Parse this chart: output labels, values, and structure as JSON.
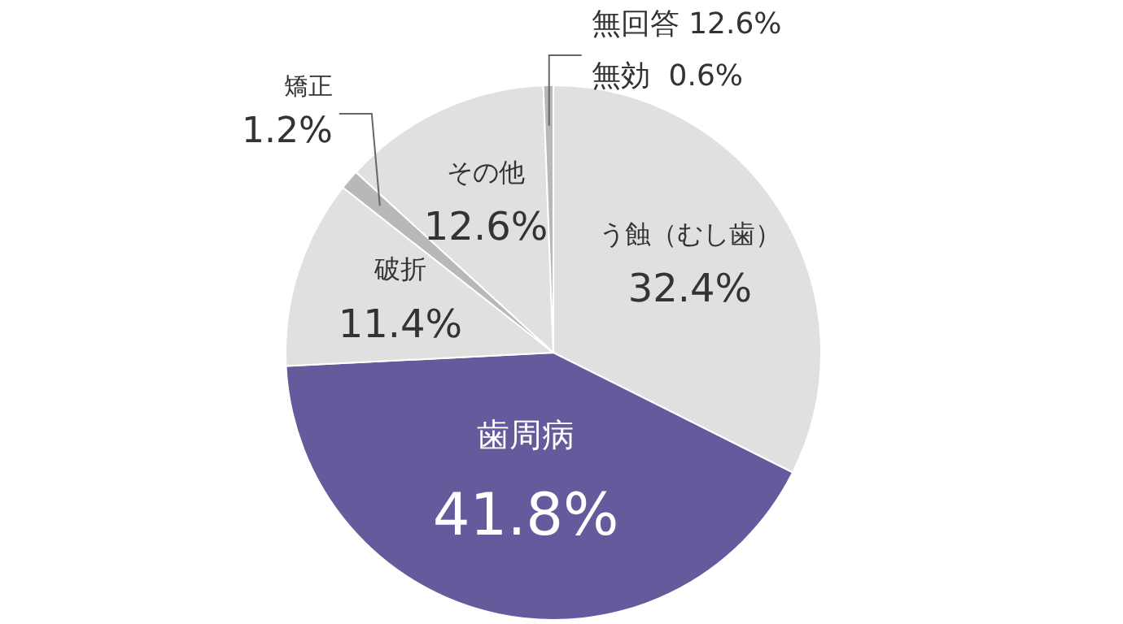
{
  "chart_data": {
    "type": "pie",
    "categories": [
      "う蝕（むし歯）",
      "歯周病",
      "破折",
      "矯正",
      "その他",
      "無効"
    ],
    "values": [
      32.4,
      41.8,
      11.4,
      1.2,
      12.6,
      0.6
    ],
    "value_labels": [
      "32.4%",
      "41.8%",
      "11.4%",
      "1.2%",
      "12.6%",
      "0.6%"
    ],
    "colors": [
      "#e0e0e0",
      "#665a9c",
      "#e0e0e0",
      "#b8b8b8",
      "#e0e0e0",
      "#b8b8b8"
    ],
    "annotations": [
      "無回答 12.6%"
    ],
    "legend": false
  }
}
